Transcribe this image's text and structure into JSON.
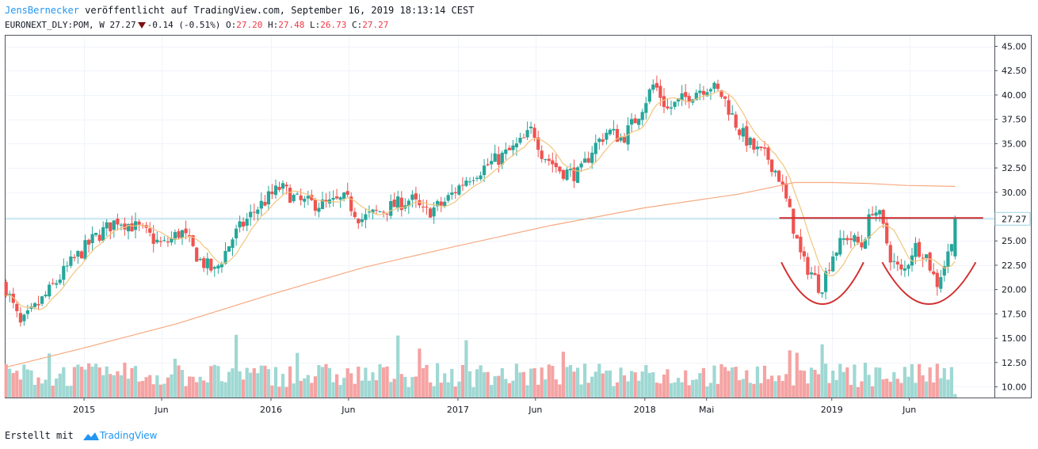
{
  "header": {
    "author": "JensBernecker",
    "published": "veröffentlicht auf TradingView.com, September 16, 2019 18:13:14 CEST",
    "symbol": "EURONEXT_DLY:POM, W",
    "last": "27.27",
    "change": "-0.14",
    "change_pct": "(-0.51%)",
    "open_label": "O:",
    "open": "27.20",
    "high_label": "H:",
    "high": "27.48",
    "low_label": "L:",
    "low": "26.73",
    "close_label": "C:",
    "close": "27.27"
  },
  "footer": {
    "created_with": "Erstellt mit",
    "brand": "TradingView"
  },
  "colors": {
    "up": "#26a69a",
    "down": "#ef5350",
    "vol_up": "#9fd8d3",
    "vol_down": "#f5a3a3",
    "ma_short": "#f3c57d",
    "ma_long": "#f7a980",
    "annotation": "#d32f2f",
    "last_line": "#9bd3e3",
    "grid": "#f0f3fa"
  },
  "chart_data": {
    "type": "candlestick",
    "interval": "weekly",
    "title": "EURONEXT_DLY:POM, W",
    "price_axis": {
      "ylim": [
        8.9,
        46.1
      ],
      "ticks": [
        "45.00",
        "42.50",
        "40.00",
        "37.50",
        "35.00",
        "32.50",
        "30.00",
        "27.50",
        "25.00",
        "22.50",
        "20.00",
        "17.50",
        "15.00",
        "12.50",
        "10.00"
      ],
      "last_price_label": "27.27",
      "last_price": 27.27
    },
    "time_axis": {
      "range": [
        2014.58,
        2019.87
      ],
      "ticks": [
        {
          "t": 2015.0,
          "label": "2015"
        },
        {
          "t": 2015.415,
          "label": "Jun"
        },
        {
          "t": 2016.0,
          "label": "2016"
        },
        {
          "t": 2016.415,
          "label": "Jun"
        },
        {
          "t": 2017.0,
          "label": "2017"
        },
        {
          "t": 2017.415,
          "label": "Jun"
        },
        {
          "t": 2018.0,
          "label": "2018"
        },
        {
          "t": 2018.33,
          "label": "Mai"
        },
        {
          "t": 2019.0,
          "label": "2019"
        },
        {
          "t": 2019.415,
          "label": "Jun"
        }
      ]
    },
    "price_path": [
      [
        2014.58,
        20.3
      ],
      [
        2014.66,
        16.3
      ],
      [
        2014.8,
        19.5
      ],
      [
        2014.92,
        22.5
      ],
      [
        2015.05,
        25.2
      ],
      [
        2015.18,
        27.2
      ],
      [
        2015.3,
        26.2
      ],
      [
        2015.42,
        24.5
      ],
      [
        2015.52,
        26.0
      ],
      [
        2015.62,
        23.0
      ],
      [
        2015.7,
        21.8
      ],
      [
        2015.8,
        25.5
      ],
      [
        2015.92,
        28.3
      ],
      [
        2016.05,
        30.5
      ],
      [
        2016.15,
        29.0
      ],
      [
        2016.3,
        28.7
      ],
      [
        2016.4,
        29.3
      ],
      [
        2016.48,
        27.2
      ],
      [
        2016.6,
        28.2
      ],
      [
        2016.75,
        29.3
      ],
      [
        2016.82,
        27.8
      ],
      [
        2016.92,
        28.8
      ],
      [
        2017.05,
        31.5
      ],
      [
        2017.22,
        33.5
      ],
      [
        2017.3,
        34.5
      ],
      [
        2017.36,
        35.5
      ],
      [
        2017.4,
        36.6
      ],
      [
        2017.45,
        34.0
      ],
      [
        2017.55,
        32.2
      ],
      [
        2017.65,
        31.8
      ],
      [
        2017.72,
        34.5
      ],
      [
        2017.8,
        36.3
      ],
      [
        2017.88,
        35.5
      ],
      [
        2017.95,
        37.5
      ],
      [
        2018.05,
        41.2
      ],
      [
        2018.12,
        38.5
      ],
      [
        2018.2,
        39.5
      ],
      [
        2018.28,
        40.5
      ],
      [
        2018.35,
        41.0
      ],
      [
        2018.42,
        39.8
      ],
      [
        2018.5,
        36.5
      ],
      [
        2018.58,
        34.5
      ],
      [
        2018.66,
        33.5
      ],
      [
        2018.72,
        31.5
      ],
      [
        2018.78,
        27.5
      ],
      [
        2018.84,
        23.0
      ],
      [
        2018.9,
        21.5
      ],
      [
        2018.94,
        20.0
      ],
      [
        2019.0,
        23.5
      ],
      [
        2019.08,
        25.5
      ],
      [
        2019.16,
        24.5
      ],
      [
        2019.22,
        28.5
      ],
      [
        2019.26,
        27.3
      ],
      [
        2019.32,
        23.0
      ],
      [
        2019.38,
        21.5
      ],
      [
        2019.44,
        24.5
      ],
      [
        2019.5,
        23.8
      ],
      [
        2019.56,
        20.5
      ],
      [
        2019.62,
        23.5
      ],
      [
        2019.66,
        27.3
      ]
    ],
    "sma_long_path": [
      [
        2014.58,
        12.0
      ],
      [
        2015.0,
        14.0
      ],
      [
        2015.5,
        16.5
      ],
      [
        2016.0,
        19.5
      ],
      [
        2016.5,
        22.3
      ],
      [
        2017.0,
        24.5
      ],
      [
        2017.5,
        26.6
      ],
      [
        2018.0,
        28.4
      ],
      [
        2018.5,
        29.8
      ],
      [
        2018.7,
        30.6
      ],
      [
        2018.8,
        31.0
      ],
      [
        2019.0,
        31.0
      ],
      [
        2019.2,
        30.9
      ],
      [
        2019.4,
        30.7
      ],
      [
        2019.66,
        30.6
      ]
    ],
    "volume_axis_max": 30,
    "annotations": {
      "resistance_level": 27.35,
      "resistance_range": [
        2018.72,
        2019.81
      ],
      "cup_1": {
        "center_t": 2018.95,
        "bottom": 18.5,
        "half_width_t": 0.22,
        "rim": 22.8
      },
      "cup_2": {
        "center_t": 2019.52,
        "bottom": 18.5,
        "half_width_t": 0.25,
        "rim": 22.8
      }
    }
  }
}
